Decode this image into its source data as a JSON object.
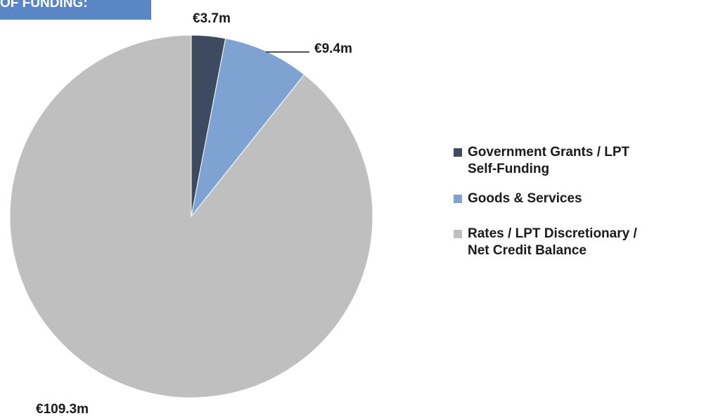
{
  "header": {
    "text": "OF FUNDING:"
  },
  "chart_data": {
    "type": "pie",
    "categories": [
      "Government Grants / LPT Self-Funding",
      "Goods & Services",
      "Rates / LPT Discretionary / Net Credit Balance"
    ],
    "values": [
      3.7,
      9.4,
      109.3
    ],
    "data_labels": [
      "€3.7m",
      "€9.4m",
      "€109.3m"
    ],
    "colors": [
      "#3d4a60",
      "#7ea3d3",
      "#bfbfbf"
    ],
    "legend_position": "right"
  },
  "legend": {
    "items": [
      {
        "line1": "Government Grants / LPT",
        "line2": "Self-Funding"
      },
      {
        "line1": "Goods & Services",
        "line2": ""
      },
      {
        "line1": "Rates / LPT Discretionary /",
        "line2": "Net Credit Balance"
      }
    ]
  }
}
